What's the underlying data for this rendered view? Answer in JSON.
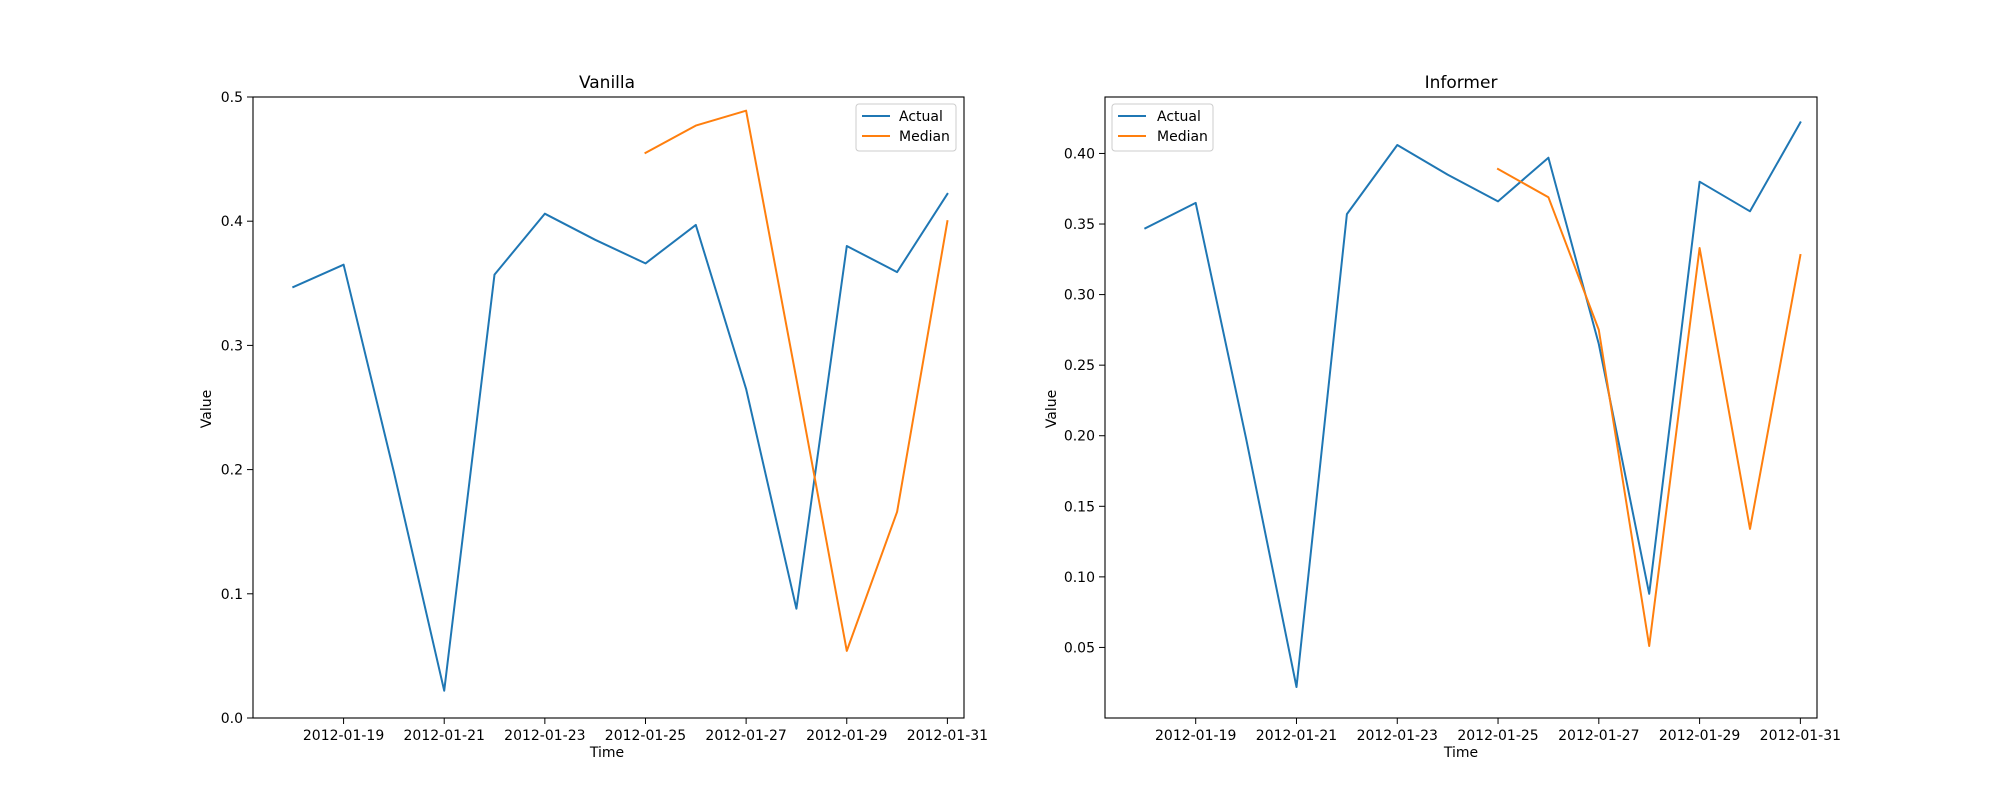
{
  "figure": {
    "colors": {
      "actual": "#1f77b4",
      "median": "#ff7f0e"
    }
  },
  "chart_data": [
    {
      "type": "line",
      "title": "Vanilla",
      "xlabel": "Time",
      "ylabel": "Value",
      "xlim": [
        "2012-01-17",
        "2012-01-31"
      ],
      "ylim": [
        0,
        0.5
      ],
      "yticks": [
        0.0,
        0.1,
        0.2,
        0.3,
        0.4,
        0.5
      ],
      "ytick_labels": [
        "0.0",
        "0.1",
        "0.2",
        "0.3",
        "0.4",
        "0.5"
      ],
      "xticks": [
        "2012-01-19",
        "2012-01-21",
        "2012-01-23",
        "2012-01-25",
        "2012-01-27",
        "2012-01-29",
        "2012-01-31"
      ],
      "grid": false,
      "legend": "upper-right",
      "series": [
        {
          "name": "Actual",
          "color": "#1f77b4",
          "x": [
            "2012-01-18",
            "2012-01-19",
            "2012-01-20",
            "2012-01-21",
            "2012-01-22",
            "2012-01-23",
            "2012-01-24",
            "2012-01-25",
            "2012-01-26",
            "2012-01-27",
            "2012-01-28",
            "2012-01-29",
            "2012-01-30",
            "2012-01-31"
          ],
          "values": [
            0.347,
            0.365,
            0.198,
            0.022,
            0.357,
            0.406,
            0.385,
            0.366,
            0.397,
            0.265,
            0.088,
            0.38,
            0.359,
            0.422
          ]
        },
        {
          "name": "Median",
          "color": "#ff7f0e",
          "x": [
            "2012-01-25",
            "2012-01-26",
            "2012-01-27",
            "2012-01-28",
            "2012-01-29",
            "2012-01-30",
            "2012-01-31"
          ],
          "values": [
            0.455,
            0.477,
            0.489,
            0.273,
            0.054,
            0.166,
            0.4
          ]
        }
      ]
    },
    {
      "type": "line",
      "title": "Informer",
      "xlabel": "Time",
      "ylabel": "Value",
      "xlim": [
        "2012-01-17",
        "2012-01-31"
      ],
      "ylim": [
        0.0,
        0.44
      ],
      "yticks": [
        0.05,
        0.1,
        0.15,
        0.2,
        0.25,
        0.3,
        0.35,
        0.4
      ],
      "ytick_labels": [
        "0.05",
        "0.10",
        "0.15",
        "0.20",
        "0.25",
        "0.30",
        "0.35",
        "0.40"
      ],
      "xticks": [
        "2012-01-19",
        "2012-01-21",
        "2012-01-23",
        "2012-01-25",
        "2012-01-27",
        "2012-01-29",
        "2012-01-31"
      ],
      "grid": false,
      "legend": "upper-left",
      "series": [
        {
          "name": "Actual",
          "color": "#1f77b4",
          "x": [
            "2012-01-18",
            "2012-01-19",
            "2012-01-20",
            "2012-01-21",
            "2012-01-22",
            "2012-01-23",
            "2012-01-24",
            "2012-01-25",
            "2012-01-26",
            "2012-01-27",
            "2012-01-28",
            "2012-01-29",
            "2012-01-30",
            "2012-01-31"
          ],
          "values": [
            0.347,
            0.365,
            0.198,
            0.022,
            0.357,
            0.406,
            0.385,
            0.366,
            0.397,
            0.265,
            0.088,
            0.38,
            0.359,
            0.422
          ]
        },
        {
          "name": "Median",
          "color": "#ff7f0e",
          "x": [
            "2012-01-25",
            "2012-01-26",
            "2012-01-27",
            "2012-01-28",
            "2012-01-29",
            "2012-01-30",
            "2012-01-31"
          ],
          "values": [
            0.389,
            0.369,
            0.275,
            0.051,
            0.333,
            0.134,
            0.328
          ]
        }
      ]
    }
  ]
}
